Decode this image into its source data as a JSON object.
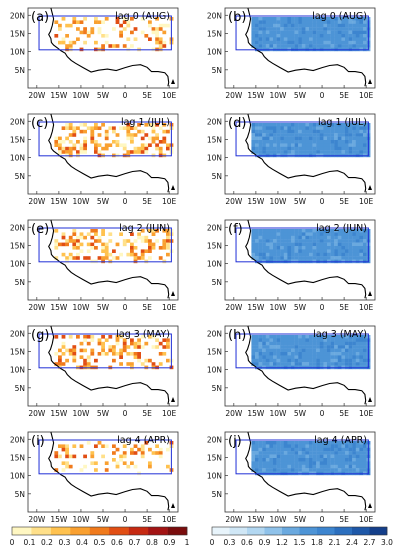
{
  "colors": {
    "ocean_stroke": "#000000",
    "region_box": "#1f2fd6",
    "land_bg": "#ffffff",
    "left_scale": [
      "#fff7c2",
      "#ffe08a",
      "#ffc24f",
      "#f9a030",
      "#f07a1c",
      "#e14e14",
      "#c62a12",
      "#a31414",
      "#7a0d0d"
    ],
    "right_scale": [
      "#e8f4fb",
      "#d0e7f6",
      "#b2d7f1",
      "#8fc2ea",
      "#6aa9df",
      "#4d94d6",
      "#3d85cf",
      "#2c6fbe",
      "#1e58a8",
      "#143f8a"
    ]
  },
  "icons": {
    "north_arrow": "north-arrow-icon"
  },
  "axes": {
    "lat_ticks": [
      "5N",
      "10N",
      "15N",
      "20N"
    ],
    "lon_ticks": [
      "20W",
      "15W",
      "10W",
      "5W",
      "0",
      "5E",
      "10E"
    ]
  },
  "panels": [
    {
      "left": {
        "tag": "(a)",
        "title": "lag 0 (AUG)"
      },
      "right": {
        "tag": "(b)",
        "title": "lag 0 (AUG)"
      }
    },
    {
      "left": {
        "tag": "(c)",
        "title": "lag 1 (JUL)"
      },
      "right": {
        "tag": "(d)",
        "title": "lag 1 (JUL)"
      }
    },
    {
      "left": {
        "tag": "(e)",
        "title": "lag 2 (JUN)"
      },
      "right": {
        "tag": "(f)",
        "title": "lag 2 (JUN)"
      }
    },
    {
      "left": {
        "tag": "(g)",
        "title": "lag 3 (MAY)"
      },
      "right": {
        "tag": "(h)",
        "title": "lag 3 (MAY)"
      }
    },
    {
      "left": {
        "tag": "(i)",
        "title": "lag 4 (APR)"
      },
      "right": {
        "tag": "(j)",
        "title": "lag 4 (APR)"
      }
    }
  ],
  "colorbars": {
    "left": {
      "ticks": [
        "0",
        "0.1",
        "0.2",
        "0.3",
        "0.4",
        "0.5",
        "0.6",
        "0.7",
        "0.8",
        "0.9",
        "1"
      ]
    },
    "right": {
      "ticks": [
        "0",
        "0.3",
        "0.6",
        "0.9",
        "1.2",
        "1.5",
        "1.8",
        "2.1",
        "2.4",
        "2.7",
        "3.0"
      ]
    }
  }
}
